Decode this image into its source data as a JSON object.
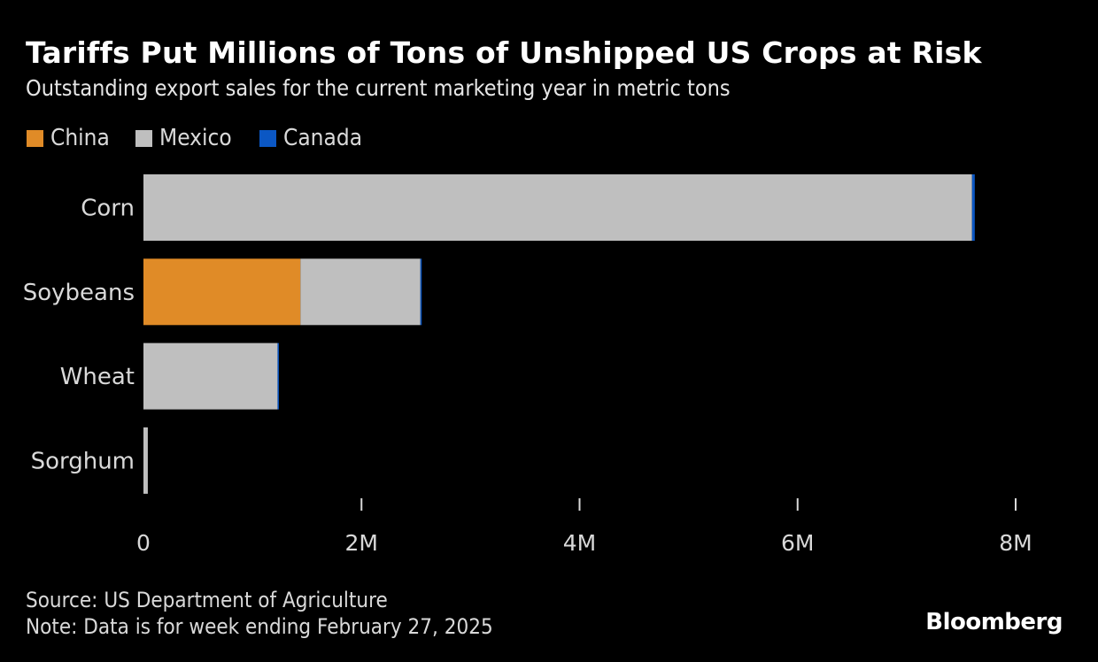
{
  "chart_data": {
    "type": "bar",
    "orientation": "horizontal",
    "stacked": true,
    "title": "Tariffs Put Millions of Tons of Unshipped US Crops at Risk",
    "subtitle": "Outstanding export sales for the current marketing year in metric tons",
    "categories": [
      "Corn",
      "Soybeans",
      "Wheat",
      "Sorghum"
    ],
    "series": [
      {
        "name": "China",
        "color": "#E08B27",
        "values": [
          0,
          1440000,
          0,
          0
        ]
      },
      {
        "name": "Mexico",
        "color": "#BFBFBF",
        "values": [
          7600000,
          1100000,
          1230000,
          40000
        ]
      },
      {
        "name": "Canada",
        "color": "#0B57C4",
        "values": [
          25000,
          5000,
          8000,
          0
        ]
      }
    ],
    "xlim": [
      0,
      8000000
    ],
    "xticks": [
      0,
      2000000,
      4000000,
      6000000,
      8000000
    ],
    "xtick_labels": [
      "0",
      "2M",
      "4M",
      "6M",
      "8M"
    ],
    "xlabel": "",
    "ylabel": "",
    "grid": false,
    "legend_position": "top-left"
  },
  "footer": {
    "source": "Source: US Department of Agriculture",
    "note": "Note: Data is for week ending February 27, 2025",
    "brand": "Bloomberg"
  }
}
